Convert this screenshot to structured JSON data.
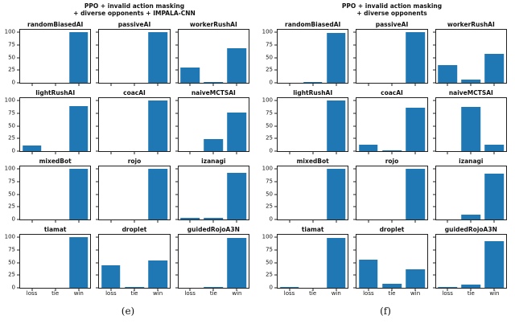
{
  "colors": {
    "bar": "#1f77b4",
    "axis": "#222222",
    "background": "#ffffff"
  },
  "chart_data": [
    {
      "type": "bar",
      "caption": "(e)",
      "title": "PPO + invalid action masking\n+ diverse opponents + IMPALA-CNN",
      "categories": [
        "loss",
        "tie",
        "win"
      ],
      "yticks": [
        0,
        25,
        50,
        75,
        100
      ],
      "ylim": [
        0,
        105
      ],
      "grid": false,
      "legend": "none",
      "subplots": [
        {
          "title": "randomBiasedAI",
          "values": [
            0,
            0,
            100
          ]
        },
        {
          "title": "passiveAI",
          "values": [
            0,
            0,
            100
          ]
        },
        {
          "title": "workerRushAI",
          "values": [
            30,
            2,
            68
          ]
        },
        {
          "title": "lightRushAI",
          "values": [
            11,
            0,
            89
          ]
        },
        {
          "title": "coacAI",
          "values": [
            0,
            0,
            100
          ]
        },
        {
          "title": "naiveMCTSAI",
          "values": [
            0,
            24,
            76
          ]
        },
        {
          "title": "mixedBot",
          "values": [
            0,
            0,
            100
          ]
        },
        {
          "title": "rojo",
          "values": [
            0,
            0,
            100
          ]
        },
        {
          "title": "izanagi",
          "values": [
            4,
            4,
            92
          ]
        },
        {
          "title": "tiamat",
          "values": [
            0,
            0,
            100
          ]
        },
        {
          "title": "droplet",
          "values": [
            44,
            2,
            54
          ]
        },
        {
          "title": "guidedRojoA3N",
          "values": [
            0,
            1,
            99
          ]
        }
      ]
    },
    {
      "type": "bar",
      "caption": "(f)",
      "title": "PPO + invalid action masking\n+ diverse opponents",
      "categories": [
        "loss",
        "tie",
        "win"
      ],
      "yticks": [
        0,
        25,
        50,
        75,
        100
      ],
      "ylim": [
        0,
        105
      ],
      "grid": false,
      "legend": "none",
      "subplots": [
        {
          "title": "randomBiasedAI",
          "values": [
            0,
            1,
            99
          ]
        },
        {
          "title": "passiveAI",
          "values": [
            0,
            0,
            100
          ]
        },
        {
          "title": "workerRushAI",
          "values": [
            35,
            6,
            58
          ]
        },
        {
          "title": "lightRushAI",
          "values": [
            0,
            0,
            100
          ]
        },
        {
          "title": "coacAI",
          "values": [
            13,
            1,
            86
          ]
        },
        {
          "title": "naiveMCTSAI",
          "values": [
            0,
            88,
            12
          ]
        },
        {
          "title": "mixedBot",
          "values": [
            0,
            0,
            100
          ]
        },
        {
          "title": "rojo",
          "values": [
            0,
            0,
            100
          ]
        },
        {
          "title": "izanagi",
          "values": [
            0,
            10,
            90
          ]
        },
        {
          "title": "tiamat",
          "values": [
            1,
            0,
            99
          ]
        },
        {
          "title": "droplet",
          "values": [
            56,
            8,
            36
          ]
        },
        {
          "title": "guidedRojoA3N",
          "values": [
            1,
            6,
            93
          ]
        }
      ]
    }
  ]
}
